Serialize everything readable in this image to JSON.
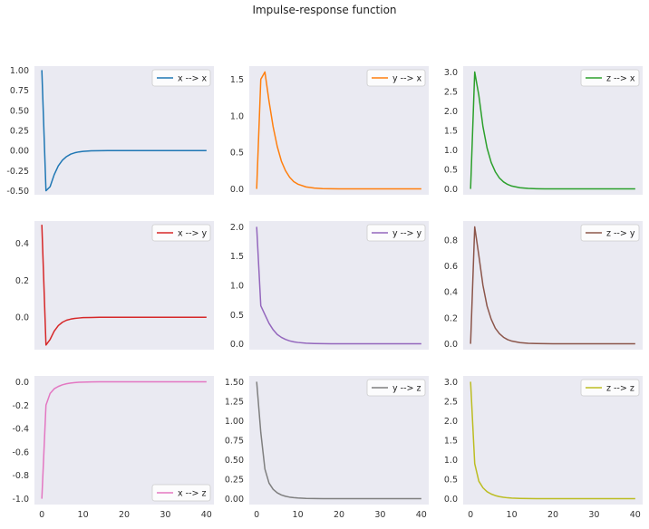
{
  "title": "Impulse-response function",
  "chart_data": {
    "type": "line",
    "title": "Impulse-response function",
    "rows": 3,
    "cols": 3,
    "x_ticks": [
      0,
      10,
      20,
      30,
      40
    ],
    "grid": false,
    "panels": [
      {
        "name": "x --> x",
        "color": "#1f77b4",
        "legend": "top-right",
        "ylim": [
          -0.55,
          1.05
        ],
        "yticks": [
          "-0.50",
          "-0.25",
          "0.00",
          "0.25",
          "0.50",
          "0.75",
          "1.00"
        ],
        "x": [
          0,
          1,
          2,
          3,
          4,
          5,
          6,
          7,
          8,
          9,
          10,
          12,
          14,
          16,
          18,
          20,
          25,
          30,
          35,
          40
        ],
        "y": [
          1.0,
          -0.5,
          -0.45,
          -0.3,
          -0.19,
          -0.12,
          -0.075,
          -0.045,
          -0.028,
          -0.017,
          -0.01,
          -0.004,
          -0.0015,
          0,
          0,
          0,
          0,
          0,
          0,
          0
        ]
      },
      {
        "name": "y --> x",
        "color": "#ff7f0e",
        "legend": "top-right",
        "ylim": [
          -0.08,
          1.68
        ],
        "yticks": [
          "0.0",
          "0.5",
          "1.0",
          "1.5"
        ],
        "x": [
          0,
          1,
          2,
          3,
          4,
          5,
          6,
          7,
          8,
          9,
          10,
          12,
          14,
          16,
          18,
          20,
          25,
          30,
          35,
          40
        ],
        "y": [
          0.0,
          1.5,
          1.6,
          1.2,
          0.85,
          0.58,
          0.38,
          0.25,
          0.16,
          0.1,
          0.065,
          0.027,
          0.011,
          0.004,
          0.002,
          0,
          0,
          0,
          0,
          0
        ]
      },
      {
        "name": "z --> x",
        "color": "#2ca02c",
        "legend": "top-right",
        "ylim": [
          -0.15,
          3.15
        ],
        "yticks": [
          "0.0",
          "0.5",
          "1.0",
          "1.5",
          "2.0",
          "2.5",
          "3.0"
        ],
        "x": [
          0,
          1,
          2,
          3,
          4,
          5,
          6,
          7,
          8,
          9,
          10,
          12,
          14,
          16,
          18,
          20,
          25,
          30,
          35,
          40
        ],
        "y": [
          0.0,
          3.0,
          2.4,
          1.6,
          1.05,
          0.68,
          0.44,
          0.28,
          0.18,
          0.115,
          0.073,
          0.03,
          0.012,
          0.005,
          0.002,
          0,
          0,
          0,
          0,
          0
        ]
      },
      {
        "name": "x --> y",
        "color": "#d62728",
        "legend": "top-right",
        "ylim": [
          -0.175,
          0.52
        ],
        "yticks": [
          "0.0",
          "0.2",
          "0.4"
        ],
        "x": [
          0,
          1,
          2,
          3,
          4,
          5,
          6,
          7,
          8,
          9,
          10,
          12,
          14,
          16,
          18,
          20,
          25,
          30,
          35,
          40
        ],
        "y": [
          0.5,
          -0.15,
          -0.12,
          -0.075,
          -0.045,
          -0.027,
          -0.016,
          -0.01,
          -0.006,
          -0.004,
          -0.002,
          -0.001,
          0,
          0,
          0,
          0,
          0,
          0,
          0,
          0
        ]
      },
      {
        "name": "y --> y",
        "color": "#9467bd",
        "legend": "top-right",
        "ylim": [
          -0.1,
          2.1
        ],
        "yticks": [
          "0.0",
          "0.5",
          "1.0",
          "1.5",
          "2.0"
        ],
        "x": [
          0,
          1,
          2,
          3,
          4,
          5,
          6,
          7,
          8,
          9,
          10,
          12,
          14,
          16,
          18,
          20,
          25,
          30,
          35,
          40
        ],
        "y": [
          2.0,
          0.65,
          0.5,
          0.35,
          0.24,
          0.16,
          0.11,
          0.075,
          0.05,
          0.034,
          0.023,
          0.011,
          0.005,
          0.002,
          0.001,
          0,
          0,
          0,
          0,
          0
        ]
      },
      {
        "name": "z --> y",
        "color": "#8c564b",
        "legend": "top-right",
        "ylim": [
          -0.045,
          0.945
        ],
        "yticks": [
          "0.0",
          "0.2",
          "0.4",
          "0.6",
          "0.8"
        ],
        "x": [
          0,
          1,
          2,
          3,
          4,
          5,
          6,
          7,
          8,
          9,
          10,
          12,
          14,
          16,
          18,
          20,
          25,
          30,
          35,
          40
        ],
        "y": [
          0.0,
          0.9,
          0.68,
          0.45,
          0.29,
          0.19,
          0.12,
          0.078,
          0.05,
          0.032,
          0.021,
          0.009,
          0.004,
          0.002,
          0.001,
          0,
          0,
          0,
          0,
          0
        ]
      },
      {
        "name": "x --> z",
        "color": "#e377c2",
        "legend": "bottom-right",
        "ylim": [
          -1.05,
          0.05
        ],
        "yticks": [
          "-1.0",
          "-0.8",
          "-0.6",
          "-0.4",
          "-0.2",
          "0.0"
        ],
        "x": [
          0,
          1,
          2,
          3,
          4,
          5,
          6,
          7,
          8,
          9,
          10,
          12,
          14,
          16,
          18,
          20,
          25,
          30,
          35,
          40
        ],
        "y": [
          -1.0,
          -0.2,
          -0.1,
          -0.06,
          -0.04,
          -0.026,
          -0.017,
          -0.011,
          -0.007,
          -0.0045,
          -0.003,
          -0.0012,
          -0.0005,
          0,
          0,
          0,
          0,
          0,
          0,
          0
        ]
      },
      {
        "name": "y --> z",
        "color": "#7f7f7f",
        "legend": "top-right",
        "ylim": [
          -0.075,
          1.575
        ],
        "yticks": [
          "0.00",
          "0.25",
          "0.50",
          "0.75",
          "1.00",
          "1.25",
          "1.50"
        ],
        "x": [
          0,
          1,
          2,
          3,
          4,
          5,
          6,
          7,
          8,
          9,
          10,
          12,
          14,
          16,
          18,
          20,
          25,
          30,
          35,
          40
        ],
        "y": [
          1.5,
          0.85,
          0.38,
          0.2,
          0.12,
          0.075,
          0.048,
          0.031,
          0.02,
          0.013,
          0.009,
          0.004,
          0.002,
          0.001,
          0,
          0,
          0,
          0,
          0,
          0
        ]
      },
      {
        "name": "z --> z",
        "color": "#bcbd22",
        "legend": "top-right",
        "ylim": [
          -0.15,
          3.15
        ],
        "yticks": [
          "0.0",
          "0.5",
          "1.0",
          "1.5",
          "2.0",
          "2.5",
          "3.0"
        ],
        "x": [
          0,
          1,
          2,
          3,
          4,
          5,
          6,
          7,
          8,
          9,
          10,
          12,
          14,
          16,
          18,
          20,
          25,
          30,
          35,
          40
        ],
        "y": [
          3.0,
          0.9,
          0.45,
          0.28,
          0.18,
          0.12,
          0.08,
          0.053,
          0.035,
          0.023,
          0.015,
          0.007,
          0.003,
          0.0015,
          0.001,
          0,
          0,
          0,
          0,
          0
        ]
      }
    ]
  }
}
